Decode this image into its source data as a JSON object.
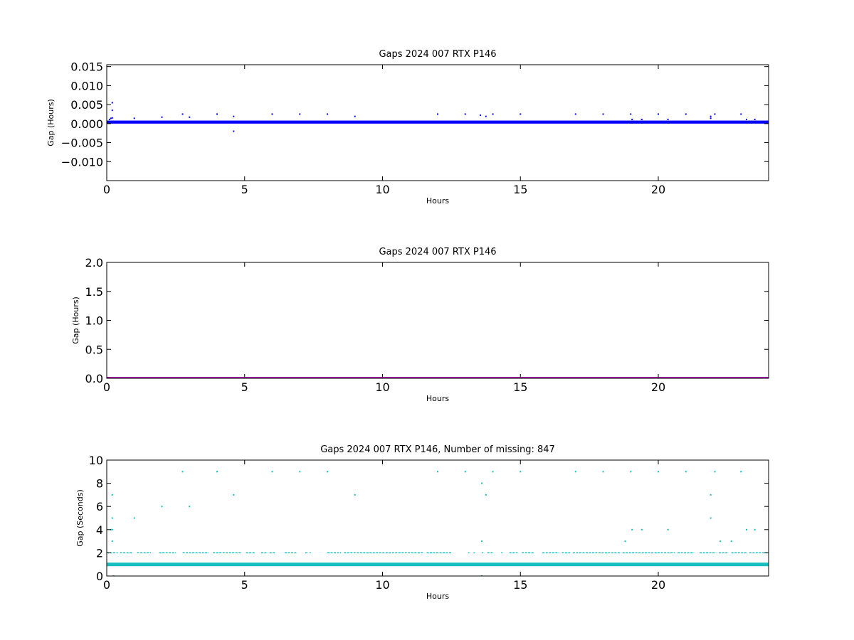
{
  "chart_data": [
    {
      "type": "scatter",
      "title": "Gaps 2024 007 RTX  P146",
      "xlabel": "Hours",
      "ylabel": "Gap (Hours)",
      "xlim": [
        0,
        24
      ],
      "ylim": [
        -0.015,
        0.0155
      ],
      "xticks": [
        0,
        5,
        10,
        15,
        20
      ],
      "yticks": [
        0.015,
        0.01,
        0.005,
        0.0,
        -0.005,
        -0.01
      ],
      "ytick_labels": [
        "0.015",
        "0.010",
        "0.005",
        "0.000",
        "−0.005",
        "−0.010"
      ],
      "grid": false,
      "color": "#0000ff",
      "series": [
        {
          "baseline_band": [
            0.0,
            0.0008
          ],
          "points": [
            {
              "x": 0.1,
              "y": 0.0011
            },
            {
              "x": 0.15,
              "y": 0.0014
            },
            {
              "x": 0.2,
              "y": 0.0055
            },
            {
              "x": 0.2,
              "y": 0.0035
            },
            {
              "x": 0.2,
              "y": 0.0015
            },
            {
              "x": 1.0,
              "y": 0.0014
            },
            {
              "x": 2.0,
              "y": 0.0017
            },
            {
              "x": 2.75,
              "y": 0.0025
            },
            {
              "x": 3.0,
              "y": 0.0017
            },
            {
              "x": 4.0,
              "y": 0.0025
            },
            {
              "x": 4.6,
              "y": 0.0019
            },
            {
              "x": 4.6,
              "y": -0.002
            },
            {
              "x": 6.0,
              "y": 0.0025
            },
            {
              "x": 7.0,
              "y": 0.0025
            },
            {
              "x": 8.0,
              "y": 0.0025
            },
            {
              "x": 9.0,
              "y": 0.0019
            },
            {
              "x": 12.0,
              "y": 0.0025
            },
            {
              "x": 13.0,
              "y": 0.0025
            },
            {
              "x": 13.55,
              "y": 0.0022
            },
            {
              "x": 13.75,
              "y": 0.0019
            },
            {
              "x": 14.0,
              "y": 0.0025
            },
            {
              "x": 15.0,
              "y": 0.0025
            },
            {
              "x": 17.0,
              "y": 0.0025
            },
            {
              "x": 18.0,
              "y": 0.0025
            },
            {
              "x": 19.0,
              "y": 0.0025
            },
            {
              "x": 19.05,
              "y": 0.0011
            },
            {
              "x": 19.4,
              "y": 0.0011
            },
            {
              "x": 20.0,
              "y": 0.0025
            },
            {
              "x": 20.35,
              "y": 0.0011
            },
            {
              "x": 21.0,
              "y": 0.0025
            },
            {
              "x": 21.9,
              "y": 0.0019
            },
            {
              "x": 21.9,
              "y": 0.0014
            },
            {
              "x": 22.05,
              "y": 0.0025
            },
            {
              "x": 23.0,
              "y": 0.0025
            },
            {
              "x": 23.2,
              "y": 0.0011
            },
            {
              "x": 23.5,
              "y": 0.0011
            }
          ]
        }
      ]
    },
    {
      "type": "line",
      "title": "Gaps 2024 007 RTX  P146",
      "xlabel": "Hours",
      "ylabel": "Gap (Hours)",
      "xlim": [
        0,
        24
      ],
      "ylim": [
        0,
        2.0
      ],
      "xticks": [
        0,
        5,
        10,
        15,
        20
      ],
      "yticks": [
        2.0,
        1.5,
        1.0,
        0.5,
        0.0
      ],
      "ytick_labels": [
        "2.0",
        "1.5",
        "1.0",
        "0.5",
        "0.0"
      ],
      "grid": false,
      "color": "#aa00aa",
      "series": [
        {
          "x": [
            0,
            24
          ],
          "y": [
            0.0,
            0.0
          ]
        }
      ]
    },
    {
      "type": "scatter",
      "title": "Gaps 2024 007 RTX  P146, Number of missing: 847",
      "xlabel": "Hours",
      "ylabel": "Gap (Seconds)",
      "xlim": [
        0,
        24
      ],
      "ylim": [
        0,
        10
      ],
      "xticks": [
        0,
        5,
        10,
        15,
        20
      ],
      "yticks": [
        10,
        8,
        6,
        4,
        2,
        0
      ],
      "ytick_labels": [
        "10",
        "8",
        "6",
        "4",
        "2",
        "0"
      ],
      "grid": false,
      "color": "#17bebe",
      "series": [
        {
          "baseline_value": 1,
          "level2_segments": [
            [
              0.0,
              0.4
            ],
            [
              0.48,
              0.95
            ],
            [
              1.1,
              1.6
            ],
            [
              1.9,
              2.5
            ],
            [
              2.75,
              3.7
            ],
            [
              3.85,
              4.9
            ],
            [
              5.05,
              5.4
            ],
            [
              5.6,
              5.8
            ],
            [
              5.9,
              6.1
            ],
            [
              6.45,
              6.9
            ],
            [
              7.2,
              7.3
            ],
            [
              7.35,
              7.4
            ],
            [
              8.0,
              8.5
            ],
            [
              8.6,
              11.5
            ],
            [
              11.6,
              12.5
            ],
            [
              13.1,
              13.15
            ],
            [
              13.3,
              13.35
            ],
            [
              13.6,
              13.65
            ],
            [
              13.8,
              14.0
            ],
            [
              14.3,
              14.35
            ],
            [
              14.6,
              14.9
            ],
            [
              15.05,
              15.5
            ],
            [
              15.8,
              16.4
            ],
            [
              16.5,
              16.8
            ],
            [
              16.9,
              18.6
            ],
            [
              18.7,
              20.6
            ],
            [
              20.7,
              21.3
            ],
            [
              21.5,
              22.1
            ],
            [
              22.2,
              22.55
            ],
            [
              22.65,
              23.2
            ],
            [
              23.3,
              24.0
            ]
          ],
          "points": [
            {
              "x": 0.2,
              "y": 7
            },
            {
              "x": 0.2,
              "y": 5
            },
            {
              "x": 0.2,
              "y": 4
            },
            {
              "x": 0.15,
              "y": 4
            },
            {
              "x": 0.2,
              "y": 3
            },
            {
              "x": 0.25,
              "y": 0
            },
            {
              "x": 1.0,
              "y": 5
            },
            {
              "x": 2.0,
              "y": 6
            },
            {
              "x": 2.75,
              "y": 9
            },
            {
              "x": 3.0,
              "y": 6
            },
            {
              "x": 4.0,
              "y": 9
            },
            {
              "x": 4.6,
              "y": 7
            },
            {
              "x": 6.0,
              "y": 9
            },
            {
              "x": 7.0,
              "y": 9
            },
            {
              "x": 8.0,
              "y": 9
            },
            {
              "x": 9.0,
              "y": 7
            },
            {
              "x": 12.0,
              "y": 9
            },
            {
              "x": 13.0,
              "y": 9
            },
            {
              "x": 13.6,
              "y": 8
            },
            {
              "x": 13.6,
              "y": 3
            },
            {
              "x": 13.6,
              "y": 0
            },
            {
              "x": 13.75,
              "y": 7
            },
            {
              "x": 14.0,
              "y": 9
            },
            {
              "x": 15.0,
              "y": 9
            },
            {
              "x": 17.0,
              "y": 9
            },
            {
              "x": 18.0,
              "y": 9
            },
            {
              "x": 18.8,
              "y": 3
            },
            {
              "x": 19.0,
              "y": 9
            },
            {
              "x": 19.05,
              "y": 4
            },
            {
              "x": 19.4,
              "y": 4
            },
            {
              "x": 20.0,
              "y": 9
            },
            {
              "x": 20.35,
              "y": 4
            },
            {
              "x": 21.0,
              "y": 9
            },
            {
              "x": 21.9,
              "y": 7
            },
            {
              "x": 21.9,
              "y": 5
            },
            {
              "x": 22.05,
              "y": 9
            },
            {
              "x": 22.25,
              "y": 3
            },
            {
              "x": 22.65,
              "y": 3
            },
            {
              "x": 23.0,
              "y": 9
            },
            {
              "x": 23.2,
              "y": 4
            },
            {
              "x": 23.5,
              "y": 4
            }
          ]
        }
      ]
    }
  ]
}
